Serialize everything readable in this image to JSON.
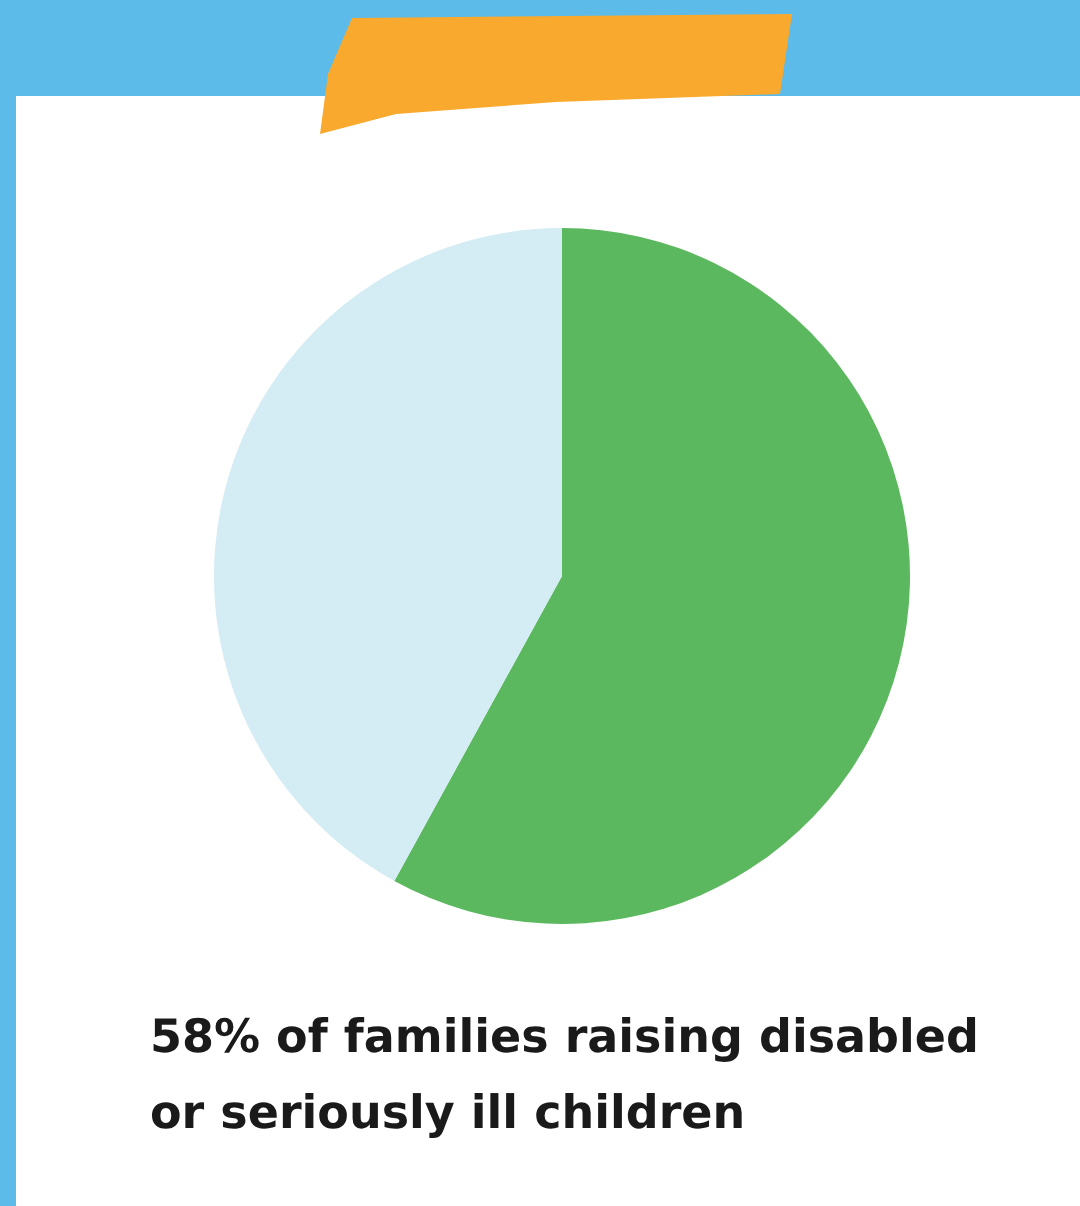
{
  "chart_data": {
    "type": "pie",
    "title": "58% of families raising disabled or seriously ill children",
    "categories": [
      null,
      null
    ],
    "values": [
      58,
      42
    ],
    "colors": [
      "#5cb85f",
      "#d4ecf3"
    ]
  }
}
